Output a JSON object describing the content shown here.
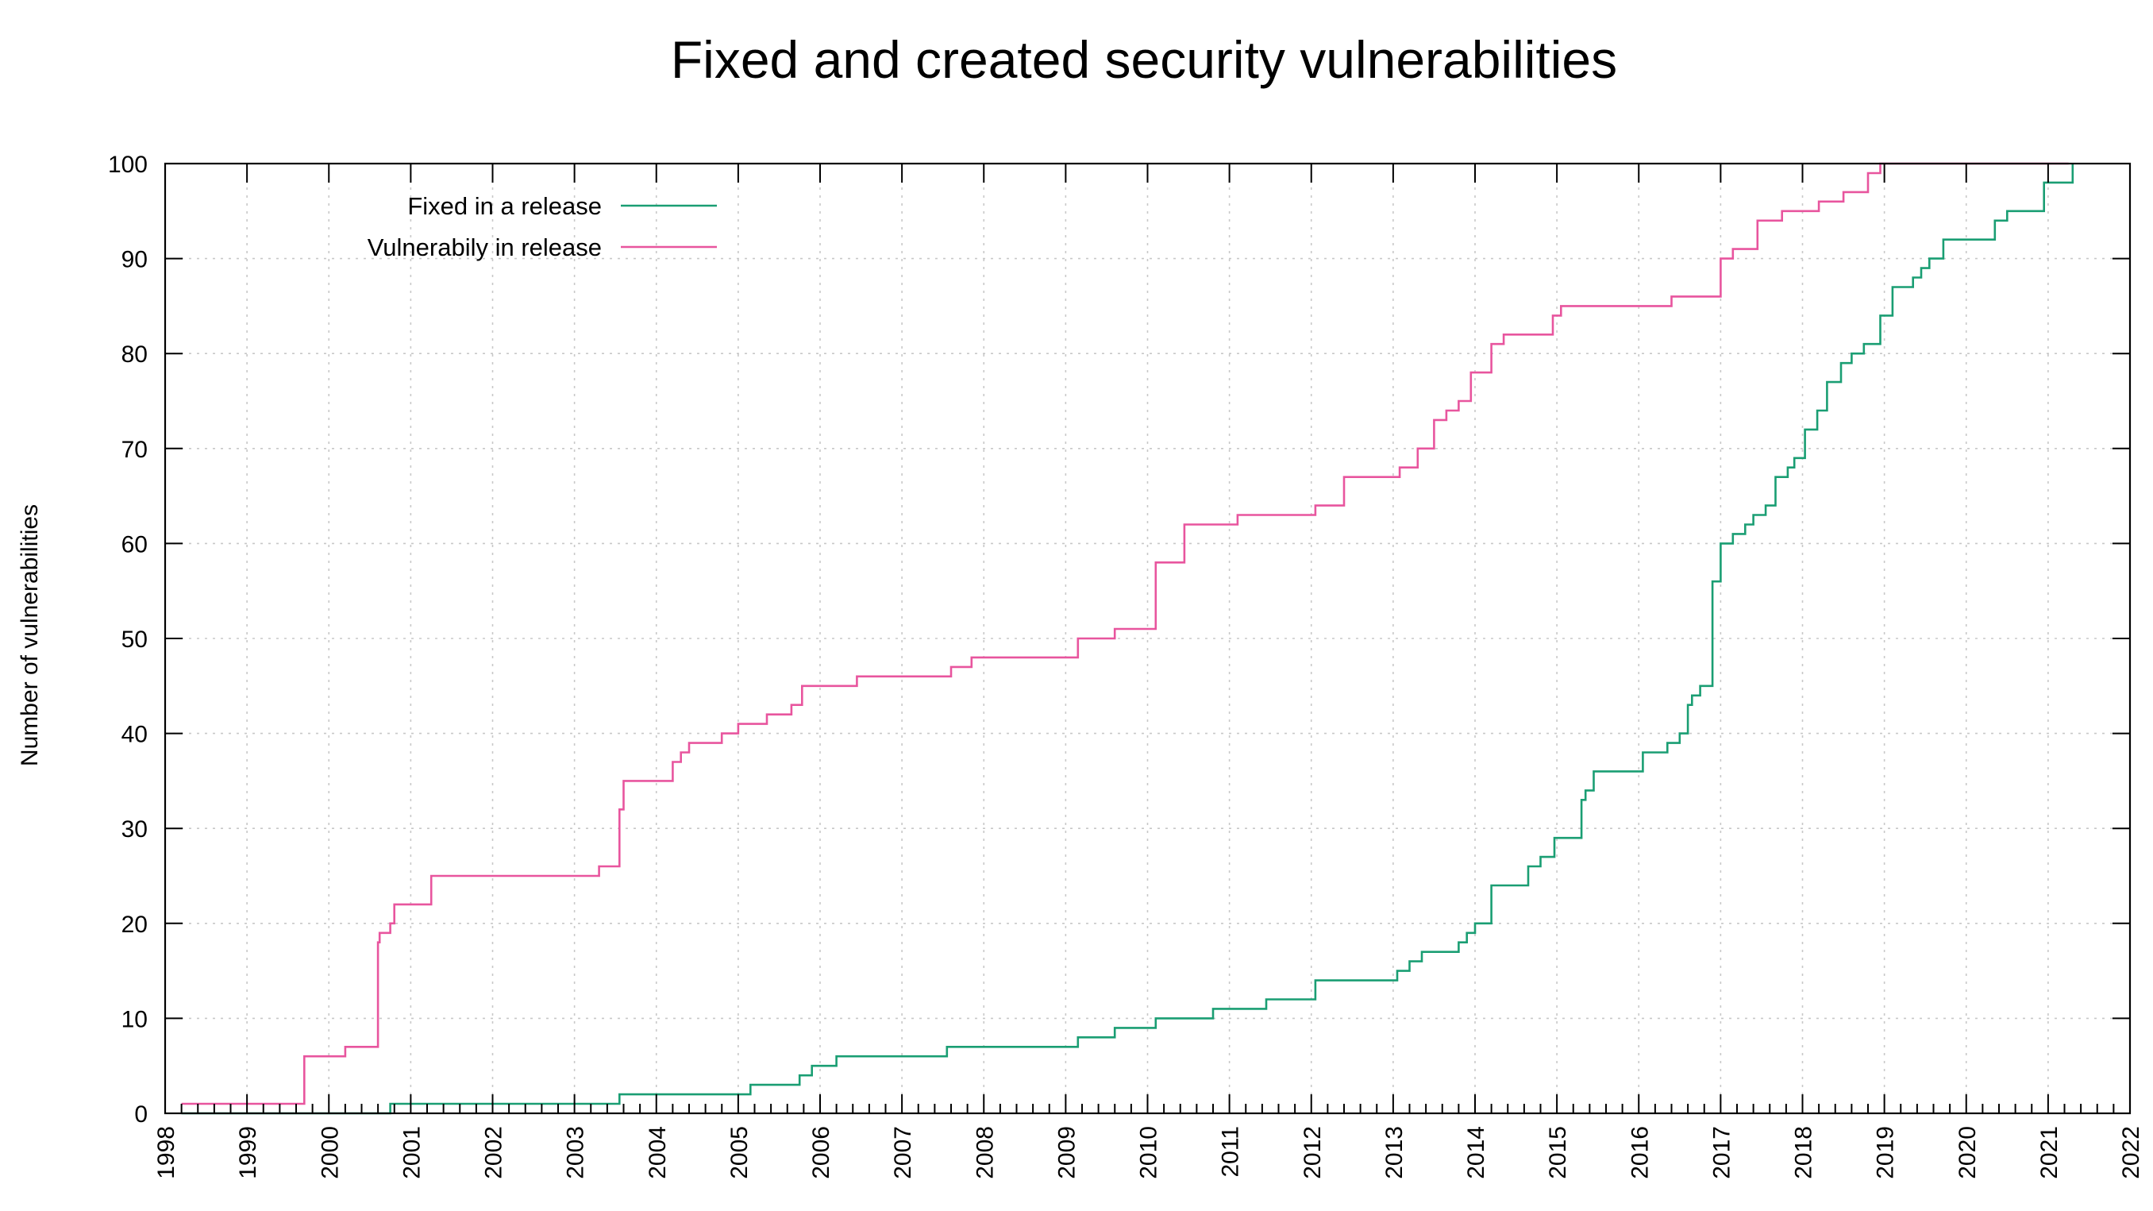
{
  "chart_data": {
    "type": "line",
    "title": "Fixed and created security vulnerabilities",
    "xlabel": "",
    "ylabel": "Number of vulnerabilities",
    "xlim": [
      1998,
      2022
    ],
    "ylim": [
      0,
      100
    ],
    "xticks": [
      "1998",
      "1999",
      "2000",
      "2001",
      "2002",
      "2003",
      "2004",
      "2005",
      "2006",
      "2007",
      "2008",
      "2009",
      "2010",
      "2011",
      "2012",
      "2013",
      "2014",
      "2015",
      "2016",
      "2017",
      "2018",
      "2019",
      "2020",
      "2021",
      "2022"
    ],
    "yticks": [
      "0",
      "10",
      "20",
      "30",
      "40",
      "50",
      "60",
      "70",
      "80",
      "90",
      "100"
    ],
    "grid": true,
    "legend_position": "top-left",
    "series": [
      {
        "name": "Fixed in a release",
        "color": "#1a9e73",
        "step": true,
        "x": [
          1998.2,
          2000.75,
          2003.55,
          2005.15,
          2005.75,
          2005.9,
          2006.2,
          2007.55,
          2009.15,
          2009.6,
          2010.1,
          2010.8,
          2011.45,
          2012.05,
          2013.05,
          2013.2,
          2013.35,
          2013.8,
          2013.9,
          2014.0,
          2014.2,
          2014.65,
          2014.8,
          2014.97,
          2015.3,
          2015.35,
          2015.45,
          2016.05,
          2016.35,
          2016.5,
          2016.6,
          2016.65,
          2016.75,
          2016.9,
          2017.0,
          2017.15,
          2017.3,
          2017.4,
          2017.55,
          2017.67,
          2017.82,
          2017.9,
          2018.03,
          2018.18,
          2018.3,
          2018.47,
          2018.6,
          2018.75,
          2018.95,
          2019.1,
          2019.35,
          2019.45,
          2019.55,
          2019.72,
          2020.35,
          2020.5,
          2020.65,
          2020.95,
          2021.25,
          2021.3
        ],
        "y": [
          0,
          1,
          2,
          3,
          4,
          5,
          6,
          7,
          8,
          9,
          10,
          11,
          12,
          14,
          15,
          16,
          17,
          18,
          19,
          20,
          24,
          26,
          27,
          29,
          33,
          34,
          36,
          38,
          39,
          40,
          43,
          44,
          45,
          56,
          60,
          61,
          62,
          63,
          64,
          67,
          68,
          69,
          72,
          74,
          77,
          79,
          80,
          81,
          84,
          87,
          88,
          89,
          90,
          92,
          94,
          95,
          95,
          98,
          98,
          100
        ]
      },
      {
        "name": "Vulnerabily in release",
        "color": "#e8559e",
        "step": true,
        "x": [
          1998.2,
          1999.7,
          2000.2,
          2000.6,
          2000.62,
          2000.75,
          2000.8,
          2001.25,
          2003.3,
          2003.55,
          2003.6,
          2004.2,
          2004.3,
          2004.4,
          2004.8,
          2005.0,
          2005.35,
          2005.65,
          2005.78,
          2006.45,
          2007.6,
          2007.85,
          2009.15,
          2009.6,
          2010.1,
          2010.45,
          2011.1,
          2012.05,
          2012.4,
          2013.08,
          2013.3,
          2013.5,
          2013.65,
          2013.8,
          2013.95,
          2014.2,
          2014.35,
          2014.95,
          2015.05,
          2015.2,
          2015.35,
          2016.4,
          2017.0,
          2017.15,
          2017.45,
          2017.75,
          2018.2,
          2018.5,
          2018.8,
          2018.95,
          2019.1,
          2021.25
        ],
        "y": [
          1,
          6,
          7,
          18,
          19,
          20,
          22,
          25,
          26,
          32,
          35,
          37,
          38,
          39,
          40,
          41,
          42,
          43,
          45,
          46,
          47,
          48,
          50,
          51,
          58,
          62,
          63,
          64,
          67,
          68,
          70,
          73,
          74,
          75,
          78,
          81,
          82,
          84,
          85,
          85,
          85,
          86,
          90,
          91,
          94,
          95,
          96,
          97,
          99,
          100,
          100,
          100
        ]
      }
    ]
  }
}
